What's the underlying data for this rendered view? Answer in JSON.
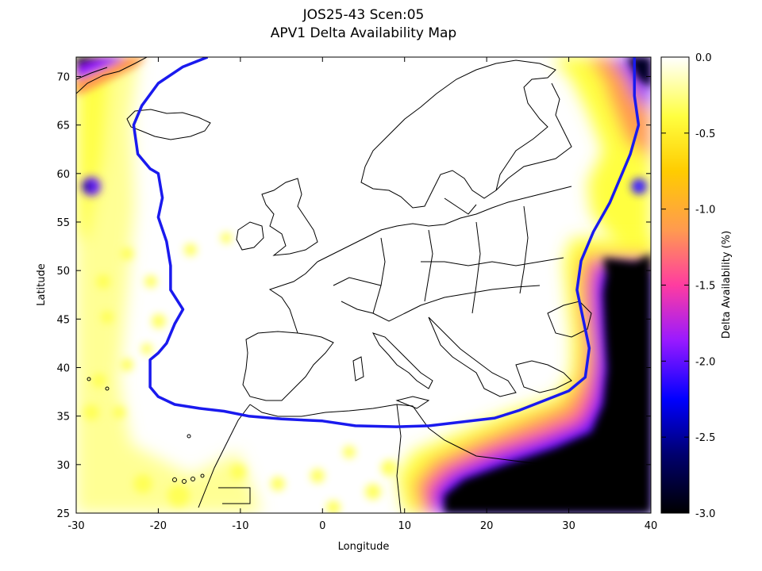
{
  "chart_data": {
    "type": "heatmap",
    "title": "JOS25-43 Scen:05",
    "subtitle": "APV1 Delta Availability Map",
    "xlabel": "Longitude",
    "ylabel": "Latitude",
    "xlim": [
      -30,
      40
    ],
    "ylim": [
      25,
      72
    ],
    "xticks": [
      -30,
      -20,
      -10,
      0,
      10,
      20,
      30,
      40
    ],
    "yticks": [
      25,
      30,
      35,
      40,
      45,
      50,
      55,
      60,
      65,
      70
    ],
    "colorbar": {
      "label": "Delta Availability (%)",
      "range": [
        -3.0,
        0.0
      ],
      "ticks": [
        "0.0",
        "-0.5",
        "-1.0",
        "-1.5",
        "-2.0",
        "-2.5",
        "-3.0"
      ],
      "colors": [
        "#ffffff",
        "#ffff00",
        "#ff9a50",
        "#ff3ca0",
        "#9a1aff",
        "#0000ff",
        "#000060",
        "#000000"
      ]
    },
    "service_area_boundary": {
      "color": "#1a1aee",
      "points": [
        [
          -14,
          72
        ],
        [
          -17,
          71
        ],
        [
          -20,
          69.3
        ],
        [
          -22,
          67
        ],
        [
          -23,
          65
        ],
        [
          -22.5,
          62
        ],
        [
          -21,
          60.5
        ],
        [
          -20,
          60
        ],
        [
          -19.5,
          57.5
        ],
        [
          -20,
          55.5
        ],
        [
          -19,
          53
        ],
        [
          -18.5,
          50.5
        ],
        [
          -18.5,
          48
        ],
        [
          -17,
          46
        ],
        [
          -18,
          44.5
        ],
        [
          -19,
          42.5
        ],
        [
          -20,
          41.5
        ],
        [
          -21,
          40.8
        ],
        [
          -21,
          38
        ],
        [
          -20,
          37
        ],
        [
          -18,
          36.2
        ],
        [
          -15,
          35.8
        ],
        [
          -12,
          35.5
        ],
        [
          -9,
          35
        ],
        [
          -5,
          34.7
        ],
        [
          0,
          34.5
        ],
        [
          4,
          34
        ],
        [
          9,
          33.9
        ],
        [
          13,
          34
        ],
        [
          17,
          34.4
        ],
        [
          21,
          34.8
        ],
        [
          24,
          35.6
        ],
        [
          27,
          36.6
        ],
        [
          30,
          37.6
        ],
        [
          32,
          39
        ],
        [
          32.5,
          42
        ],
        [
          31.5,
          46
        ],
        [
          31,
          48
        ],
        [
          31.5,
          51
        ],
        [
          33,
          54
        ],
        [
          35,
          57
        ],
        [
          37.5,
          62
        ],
        [
          38.5,
          65
        ],
        [
          38,
          68
        ],
        [
          38,
          72
        ]
      ]
    },
    "degraded_regions": [
      {
        "lon": [
          22,
          40
        ],
        "lat": [
          25,
          44
        ],
        "value": -3.0
      },
      {
        "lon": [
          10,
          22
        ],
        "lat": [
          25,
          33
        ],
        "value": -3.0
      },
      {
        "lon": [
          33,
          40
        ],
        "lat": [
          44,
          50
        ],
        "value": -2.8
      },
      {
        "lon": [
          -30,
          -22
        ],
        "lat": [
          68,
          72
        ],
        "value": -2.5
      },
      {
        "lon": [
          34,
          40
        ],
        "lat": [
          68,
          72
        ],
        "value": -2.5
      },
      {
        "lon": [
          -30,
          -27
        ],
        "lat": [
          58,
          61
        ],
        "value": -1.8
      }
    ],
    "coastline_color": "#000000"
  }
}
